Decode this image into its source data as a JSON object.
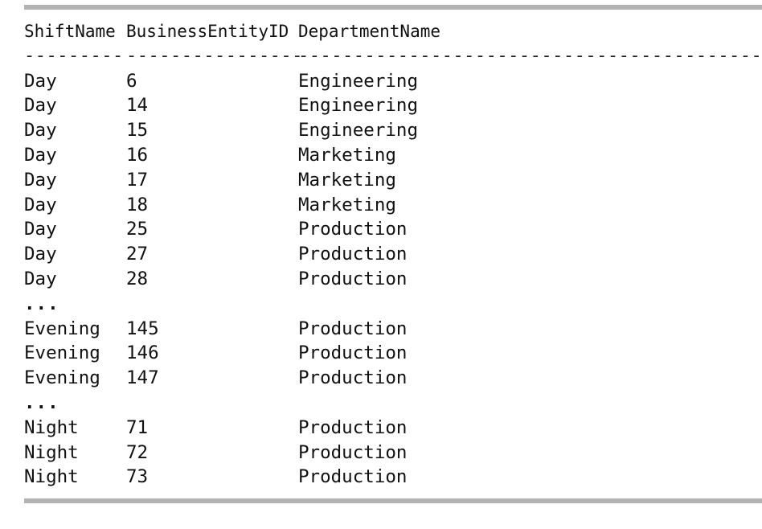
{
  "columns": [
    "ShiftName",
    "BusinessEntityID",
    "DepartmentName"
  ],
  "separators": [
    "---------",
    "----------------",
    "----------------------------------------------"
  ],
  "rows": [
    {
      "shift": "Day",
      "id": "6",
      "dept": "Engineering"
    },
    {
      "shift": "Day",
      "id": "14",
      "dept": "Engineering"
    },
    {
      "shift": "Day",
      "id": "15",
      "dept": "Engineering"
    },
    {
      "shift": "Day",
      "id": "16",
      "dept": "Marketing"
    },
    {
      "shift": "Day",
      "id": "17",
      "dept": "Marketing"
    },
    {
      "shift": "Day",
      "id": "18",
      "dept": "Marketing"
    },
    {
      "shift": "Day",
      "id": "25",
      "dept": "Production"
    },
    {
      "shift": "Day",
      "id": "27",
      "dept": "Production"
    },
    {
      "shift": "Day",
      "id": "28",
      "dept": "Production"
    },
    {
      "ellipsis": "..."
    },
    {
      "shift": "Evening",
      "id": "145",
      "dept": "Production"
    },
    {
      "shift": "Evening",
      "id": "146",
      "dept": "Production"
    },
    {
      "shift": "Evening",
      "id": "147",
      "dept": "Production"
    },
    {
      "ellipsis": "..."
    },
    {
      "shift": "Night",
      "id": "71",
      "dept": "Production"
    },
    {
      "shift": "Night",
      "id": "72",
      "dept": "Production"
    },
    {
      "shift": "Night",
      "id": "73",
      "dept": "Production"
    }
  ]
}
